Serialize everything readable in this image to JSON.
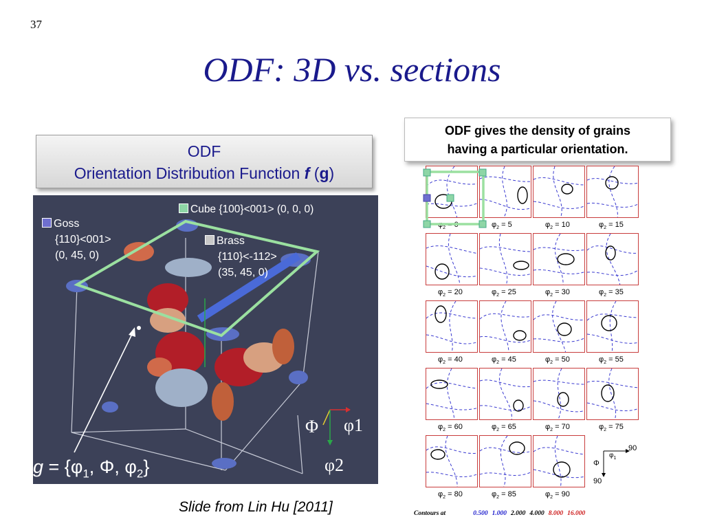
{
  "slide": {
    "number": "37",
    "title": "ODF: 3D vs. sections"
  },
  "odf_box": {
    "line1": "ODF",
    "line2_prefix": "Orientation Distribution Function ",
    "f": "f",
    "open": " (",
    "g": "g",
    "close": ")"
  },
  "note_box": {
    "line1": "ODF gives the density of grains",
    "line2": "having a particular orientation."
  },
  "viz_labels": {
    "cube": "Cube {100}<001> (0, 0, 0)",
    "goss": [
      "Goss",
      "{110}<001>",
      "(0, 45, 0)"
    ],
    "brass": [
      "Brass",
      "{110}<-112>",
      "(35, 45, 0)"
    ],
    "phi_cap": "Φ",
    "phi1": "φ1",
    "phi2": "φ2"
  },
  "colors": {
    "cube": "#8ed6a6",
    "goss": "#6f6fcf",
    "brass": "#c8c8c8",
    "frame": "#9be0a0",
    "panel_bg": "#3c4158"
  },
  "formula": {
    "g": "g",
    "eq": " = {φ",
    "s1": "1",
    "c1": ", Φ, φ",
    "s2": "2",
    "end": "}"
  },
  "citation": "Slide from Lin Hu [2011]",
  "sections": [
    "0",
    "5",
    "10",
    "15",
    "20",
    "25",
    "30",
    "35",
    "40",
    "45",
    "50",
    "55",
    "60",
    "65",
    "70",
    "75",
    "80",
    "85",
    "90"
  ],
  "section_prefix": "φ",
  "section_sub": "2",
  "axes_key": {
    "phi1": "φ",
    "phi1_sub": "1",
    "top": "90",
    "phi_cap": "Φ",
    "bottom": "90"
  },
  "contours": {
    "label": "Contours at",
    "levels": [
      "0.500",
      "1.000",
      "2.000",
      "4.000",
      "8.000",
      "16.000"
    ],
    "level_colors": [
      "#1a1acc",
      "#1a1acc",
      "#000000",
      "#000000",
      "#cc1a1a",
      "#cc1a1a"
    ]
  }
}
